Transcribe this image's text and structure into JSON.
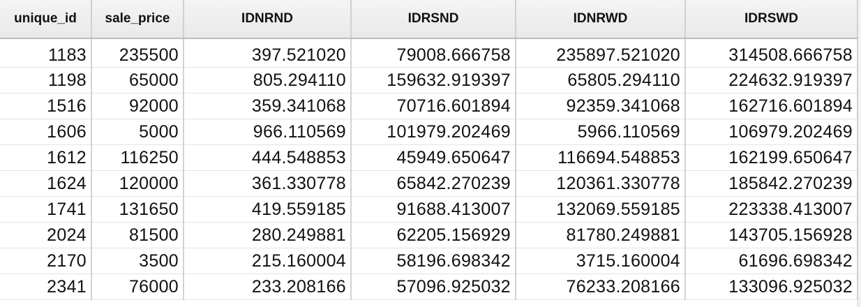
{
  "table": {
    "columns": [
      "unique_id",
      "sale_price",
      "IDNRND",
      "IDRSND",
      "IDNRWD",
      "IDRSWD"
    ],
    "rows": [
      [
        "1183",
        "235500",
        "397.521020",
        "79008.666758",
        "235897.521020",
        "314508.666758"
      ],
      [
        "1198",
        "65000",
        "805.294110",
        "159632.919397",
        "65805.294110",
        "224632.919397"
      ],
      [
        "1516",
        "92000",
        "359.341068",
        "70716.601894",
        "92359.341068",
        "162716.601894"
      ],
      [
        "1606",
        "5000",
        "966.110569",
        "101979.202469",
        "5966.110569",
        "106979.202469"
      ],
      [
        "1612",
        "116250",
        "444.548853",
        "45949.650647",
        "116694.548853",
        "162199.650647"
      ],
      [
        "1624",
        "120000",
        "361.330778",
        "65842.270239",
        "120361.330778",
        "185842.270239"
      ],
      [
        "1741",
        "131650",
        "419.559185",
        "91688.413007",
        "132069.559185",
        "223338.413007"
      ],
      [
        "2024",
        "81500",
        "280.249881",
        "62205.156929",
        "81780.249881",
        "143705.156928"
      ],
      [
        "2170",
        "3500",
        "215.160004",
        "58196.698342",
        "3715.160004",
        "61696.698342"
      ],
      [
        "2341",
        "76000",
        "233.208166",
        "57096.925032",
        "76233.208166",
        "133096.925032"
      ]
    ]
  }
}
